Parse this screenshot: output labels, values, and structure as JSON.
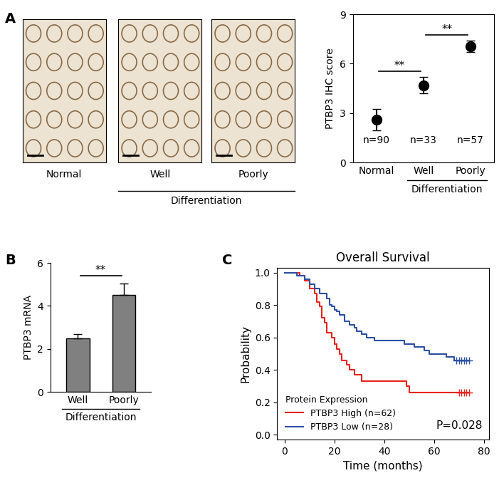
{
  "panel_labels": [
    "A",
    "B",
    "C"
  ],
  "images": {
    "labels": [
      "Normal",
      "Well",
      "Poorly"
    ],
    "group": {
      "label": "Differentiation",
      "categories": [
        "Well",
        "Poorly"
      ]
    }
  },
  "chart_data": [
    {
      "type": "scatter",
      "categories": [
        "Normal",
        "Well",
        "Poorly"
      ],
      "values": [
        2.6,
        4.7,
        7.05
      ],
      "errors": [
        0.65,
        0.5,
        0.35
      ],
      "color": "#000000",
      "marker": "o",
      "y_label": "PTBP3 IHC score",
      "ylim": [
        0,
        9
      ],
      "yticks": [
        0,
        3,
        6,
        9
      ],
      "annotations": [
        "n=90",
        "n=33",
        "n=57"
      ],
      "significance": [
        {
          "between": [
            "Normal",
            "Well"
          ],
          "label": "**"
        },
        {
          "between": [
            "Well",
            "Poorly"
          ],
          "label": "**"
        }
      ],
      "group": {
        "label": "Differentiation",
        "categories": [
          "Well",
          "Poorly"
        ]
      }
    },
    {
      "type": "bar",
      "categories": [
        "Well",
        "Poorly"
      ],
      "values": [
        2.5,
        4.5
      ],
      "errors": [
        0.2,
        0.55
      ],
      "color": "#808080",
      "y_label": "PTBP3 mRNA",
      "ylim": [
        0,
        6
      ],
      "yticks": [
        0,
        2,
        4,
        6
      ],
      "significance": [
        {
          "between": [
            "Well",
            "Poorly"
          ],
          "label": "**"
        }
      ],
      "group": {
        "label": "Differentiation",
        "categories": [
          "Well",
          "Poorly"
        ]
      }
    },
    {
      "type": "line",
      "title": "Overall Survival",
      "x_label": "Time (months)",
      "y_label": "Probability",
      "xlim": [
        -3,
        82
      ],
      "xticks": [
        0,
        20,
        40,
        60,
        80
      ],
      "ylim": [
        -0.03,
        1.03
      ],
      "yticks": [
        {
          "value": 0.0,
          "label": "0.0"
        },
        {
          "value": 0.2,
          "label": "0.2"
        },
        {
          "value": 0.4,
          "label": "0.4"
        },
        {
          "value": 0.6,
          "label": "0.6"
        },
        {
          "value": 0.8,
          "label": "0.8"
        },
        {
          "value": 1.0,
          "label": "1.0"
        }
      ],
      "legend": "lower left",
      "legend_title": "Protein Expression",
      "annotations": [
        "P=0.028"
      ],
      "series": [
        {
          "name": "PTBP3 High (n=62)",
          "color": "#e8241c",
          "line_style": "steps",
          "x": [
            0,
            6,
            8,
            10,
            12,
            13,
            14,
            15,
            16,
            17,
            19,
            20,
            21,
            22,
            23,
            25,
            26,
            28,
            31,
            49,
            50,
            74
          ],
          "values": [
            1.0,
            0.98,
            0.95,
            0.9,
            0.87,
            0.82,
            0.79,
            0.72,
            0.69,
            0.63,
            0.6,
            0.56,
            0.53,
            0.5,
            0.46,
            0.43,
            0.4,
            0.37,
            0.33,
            0.3,
            0.26,
            0.26
          ],
          "censored_x": [
            70,
            71,
            72,
            73,
            74
          ]
        },
        {
          "name": "PTBP3 Low (n=28)",
          "color": "#2c4fa3",
          "line_style": "steps",
          "x": [
            0,
            5,
            8,
            10,
            12,
            14,
            17,
            18,
            19,
            20,
            21,
            22,
            24,
            26,
            28,
            29,
            31,
            33,
            36,
            48,
            52,
            56,
            58,
            65,
            68,
            74
          ],
          "values": [
            1.0,
            0.98,
            0.96,
            0.93,
            0.9,
            0.87,
            0.84,
            0.8,
            0.79,
            0.77,
            0.76,
            0.74,
            0.7,
            0.68,
            0.66,
            0.64,
            0.62,
            0.6,
            0.58,
            0.56,
            0.54,
            0.52,
            0.5,
            0.48,
            0.46,
            0.46
          ],
          "censored_x": [
            69,
            70,
            71,
            72,
            73,
            74
          ]
        }
      ]
    }
  ]
}
